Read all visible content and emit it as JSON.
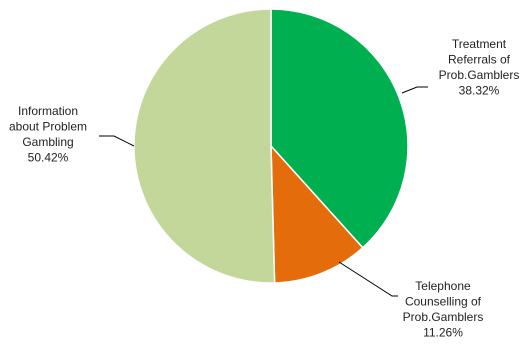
{
  "chart_data": {
    "type": "pie",
    "title": "",
    "slices": [
      {
        "label_lines": [
          "Treatment",
          "Referrals of",
          "Prob.Gamblers"
        ],
        "value_label": "38.32%",
        "value": 38.32,
        "color": "#00b050"
      },
      {
        "label_lines": [
          "Telephone",
          "Counselling of",
          "Prob.Gamblers"
        ],
        "value_label": "11.26%",
        "value": 11.26,
        "color": "#e46c0a"
      },
      {
        "label_lines": [
          "Information",
          "about Problem",
          "Gambling"
        ],
        "value_label": "50.42%",
        "value": 50.42,
        "color": "#c4d79b"
      }
    ],
    "start_angle": "12 o'clock",
    "direction": "clockwise",
    "legend": "none"
  }
}
